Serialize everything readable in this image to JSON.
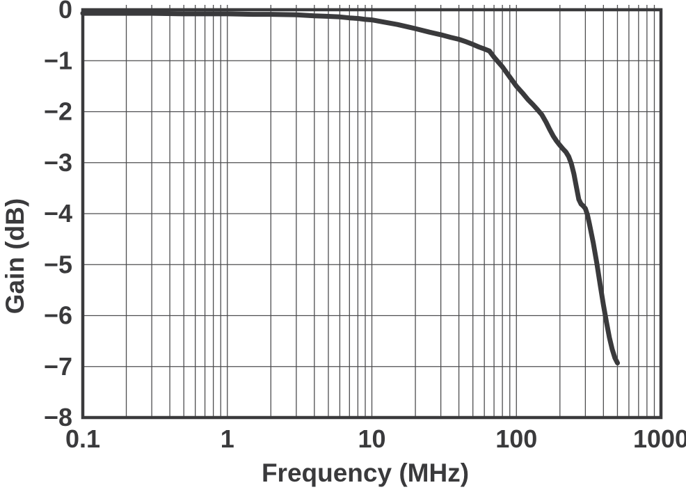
{
  "chart_data": {
    "type": "line",
    "title": "",
    "xlabel": "Frequency (MHz)",
    "ylabel": "Gain (dB)",
    "x_scale": "log",
    "y_scale": "linear",
    "xlim": [
      0.1,
      1000
    ],
    "ylim": [
      -8,
      0
    ],
    "x_ticks": [
      0.1,
      1,
      10,
      100,
      1000
    ],
    "x_tick_labels": [
      "0.1",
      "1",
      "10",
      "100",
      "1000"
    ],
    "y_ticks": [
      0,
      -1,
      -2,
      -3,
      -4,
      -5,
      -6,
      -7,
      -8
    ],
    "y_tick_labels": [
      "0",
      "−1",
      "−2",
      "−3",
      "−4",
      "−5",
      "−6",
      "−7",
      "−8"
    ],
    "grid": true,
    "minor_grid_x": true,
    "legend": "none",
    "series": [
      {
        "name": "gain",
        "points": [
          [
            0.1,
            -0.07
          ],
          [
            0.2,
            -0.07
          ],
          [
            0.3,
            -0.07
          ],
          [
            0.5,
            -0.08
          ],
          [
            0.7,
            -0.08
          ],
          [
            1,
            -0.08
          ],
          [
            1.5,
            -0.09
          ],
          [
            2,
            -0.09
          ],
          [
            3,
            -0.1
          ],
          [
            4,
            -0.12
          ],
          [
            5,
            -0.13
          ],
          [
            6,
            -0.14
          ],
          [
            7,
            -0.16
          ],
          [
            8,
            -0.17
          ],
          [
            9,
            -0.19
          ],
          [
            10,
            -0.2
          ],
          [
            12,
            -0.24
          ],
          [
            15,
            -0.29
          ],
          [
            18,
            -0.34
          ],
          [
            20,
            -0.37
          ],
          [
            25,
            -0.44
          ],
          [
            30,
            -0.49
          ],
          [
            35,
            -0.54
          ],
          [
            40,
            -0.58
          ],
          [
            45,
            -0.63
          ],
          [
            50,
            -0.68
          ],
          [
            55,
            -0.73
          ],
          [
            60,
            -0.77
          ],
          [
            65,
            -0.81
          ],
          [
            70,
            -0.93
          ],
          [
            75,
            -1.03
          ],
          [
            80,
            -1.12
          ],
          [
            90,
            -1.32
          ],
          [
            100,
            -1.5
          ],
          [
            110,
            -1.63
          ],
          [
            120,
            -1.76
          ],
          [
            130,
            -1.86
          ],
          [
            140,
            -1.96
          ],
          [
            150,
            -2.06
          ],
          [
            160,
            -2.2
          ],
          [
            170,
            -2.35
          ],
          [
            180,
            -2.48
          ],
          [
            190,
            -2.58
          ],
          [
            200,
            -2.66
          ],
          [
            210,
            -2.73
          ],
          [
            220,
            -2.79
          ],
          [
            230,
            -2.88
          ],
          [
            240,
            -3.02
          ],
          [
            250,
            -3.22
          ],
          [
            260,
            -3.48
          ],
          [
            270,
            -3.72
          ],
          [
            280,
            -3.81
          ],
          [
            290,
            -3.85
          ],
          [
            300,
            -3.9
          ],
          [
            310,
            -4.02
          ],
          [
            320,
            -4.2
          ],
          [
            340,
            -4.57
          ],
          [
            360,
            -4.97
          ],
          [
            380,
            -5.4
          ],
          [
            400,
            -5.79
          ],
          [
            420,
            -6.13
          ],
          [
            440,
            -6.43
          ],
          [
            460,
            -6.66
          ],
          [
            480,
            -6.83
          ],
          [
            500,
            -6.93
          ]
        ]
      }
    ],
    "colors": {
      "curve": "#3a3a3c",
      "frame": "#3a3a3c",
      "grid": "#4d4d4f",
      "text": "#3a3a3c",
      "background": "#ffffff"
    }
  }
}
